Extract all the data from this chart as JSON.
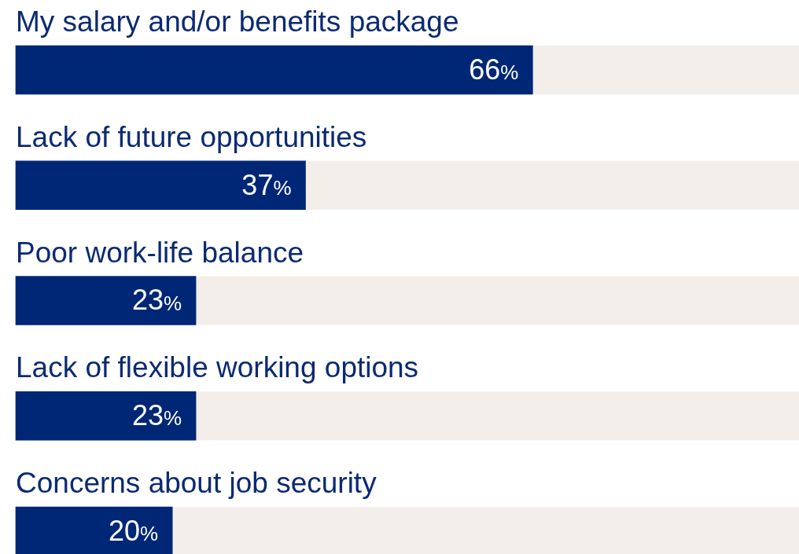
{
  "chart_data": {
    "type": "bar",
    "orientation": "horizontal",
    "categories": [
      "My salary and/or benefits package",
      "Lack of future opportunities",
      "Poor work-life balance",
      "Lack of flexible working options",
      "Concerns about job security"
    ],
    "values": [
      66,
      37,
      23,
      23,
      20
    ],
    "value_labels": [
      "66%",
      "37%",
      "23%",
      "23%",
      "20%"
    ],
    "color": "#002776",
    "xlim": [
      0,
      100
    ],
    "tick_labels": "y",
    "legend": false
  }
}
